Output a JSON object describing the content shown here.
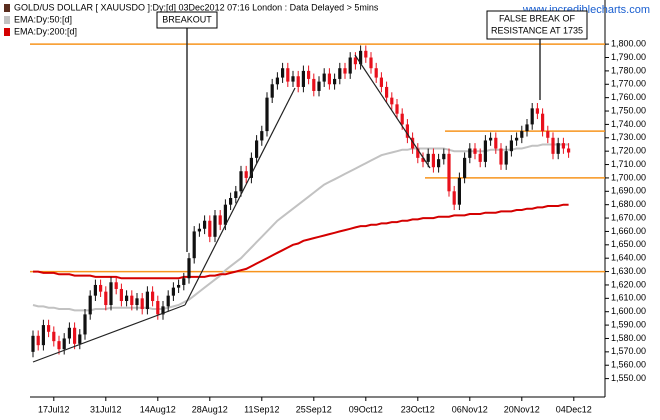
{
  "chart_data": {
    "type": "candlestick",
    "name": "GOLD/US DOLLAR [ XAUUSDO ]:Dy:[d]  03Dec2012 07:16 London : Data Delayed > 5mins",
    "watermark": "www.incrediblecharts.com",
    "up_color": "#111111",
    "down_color": "#e8101c",
    "legend_color": "#5a2d1e",
    "categories": [
      null,
      null,
      null,
      null,
      "17Jul12",
      null,
      null,
      null,
      null,
      null,
      null,
      null,
      null,
      null,
      "31Jul12",
      null,
      null,
      null,
      null,
      null,
      null,
      null,
      null,
      null,
      "14Aug12",
      null,
      null,
      null,
      null,
      null,
      null,
      null,
      null,
      null,
      "28Aug12",
      null,
      null,
      null,
      null,
      null,
      null,
      null,
      null,
      null,
      "11Sep12",
      null,
      null,
      null,
      null,
      null,
      null,
      null,
      null,
      null,
      "25Sep12",
      null,
      null,
      null,
      null,
      null,
      null,
      null,
      null,
      null,
      "09Oct12",
      null,
      null,
      null,
      null,
      null,
      null,
      null,
      null,
      null,
      "23Oct12",
      null,
      null,
      null,
      null,
      null,
      null,
      null,
      null,
      null,
      "06Nov12",
      null,
      null,
      null,
      null,
      null,
      null,
      null,
      null,
      null,
      "20Nov12",
      null,
      null,
      null,
      null,
      null,
      null,
      null,
      null,
      null,
      "04Dec12"
    ],
    "open": [
      1570,
      1582,
      1575,
      1590,
      1585,
      1578,
      1572,
      1580,
      1588,
      1576,
      1583,
      1598,
      1612,
      1620,
      1615,
      1605,
      1622,
      1617,
      1608,
      1612,
      1605,
      1610,
      1602,
      1615,
      1608,
      1598,
      1604,
      1612,
      1618,
      1620,
      1625,
      1640,
      1660,
      1662,
      1668,
      1656,
      1672,
      1665,
      1680,
      1685,
      1690,
      1705,
      1700,
      1715,
      1728,
      1735,
      1760,
      1770,
      1775,
      1782,
      1772,
      1776,
      1768,
      1780,
      1774,
      1765,
      1772,
      1778,
      1770,
      1774,
      1782,
      1778,
      1790,
      1785,
      1795,
      1790,
      1782,
      1775,
      1768,
      1760,
      1755,
      1748,
      1740,
      1730,
      1722,
      1715,
      1712,
      1718,
      1708,
      1714,
      1718,
      1690,
      1680,
      1700,
      1715,
      1722,
      1718,
      1712,
      1728,
      1730,
      1722,
      1710,
      1720,
      1728,
      1730,
      1735,
      1740,
      1752,
      1748,
      1735,
      1730,
      1718,
      1726,
      1722,
      null
    ],
    "high": [
      1586,
      1586,
      1594,
      1594,
      1589,
      1582,
      1584,
      1592,
      1592,
      1587,
      1602,
      1616,
      1624,
      1624,
      1619,
      1626,
      1626,
      1621,
      1616,
      1616,
      1614,
      1614,
      1619,
      1619,
      1612,
      1608,
      1616,
      1622,
      1624,
      1629,
      1644,
      1664,
      1666,
      1672,
      1672,
      1676,
      1676,
      1684,
      1689,
      1694,
      1709,
      1709,
      1719,
      1732,
      1739,
      1764,
      1774,
      1779,
      1786,
      1786,
      1780,
      1780,
      1784,
      1784,
      1778,
      1776,
      1782,
      1782,
      1778,
      1786,
      1786,
      1794,
      1794,
      1799,
      1799,
      1794,
      1786,
      1779,
      1772,
      1764,
      1759,
      1752,
      1744,
      1734,
      1726,
      1719,
      1722,
      1722,
      1718,
      1722,
      1722,
      1694,
      1704,
      1719,
      1726,
      1726,
      1722,
      1732,
      1734,
      1734,
      1726,
      1724,
      1732,
      1734,
      1739,
      1744,
      1756,
      1756,
      1752,
      1739,
      1734,
      1730,
      1730,
      1726,
      null
    ],
    "low": [
      1566,
      1571,
      1571,
      1581,
      1574,
      1568,
      1568,
      1576,
      1572,
      1572,
      1579,
      1594,
      1608,
      1611,
      1601,
      1601,
      1613,
      1604,
      1604,
      1601,
      1601,
      1598,
      1598,
      1604,
      1594,
      1594,
      1600,
      1608,
      1614,
      1616,
      1621,
      1636,
      1656,
      1658,
      1652,
      1652,
      1661,
      1661,
      1676,
      1681,
      1686,
      1696,
      1696,
      1711,
      1724,
      1731,
      1756,
      1766,
      1771,
      1768,
      1768,
      1764,
      1764,
      1770,
      1761,
      1761,
      1768,
      1766,
      1766,
      1770,
      1774,
      1774,
      1781,
      1781,
      1786,
      1778,
      1771,
      1764,
      1756,
      1751,
      1744,
      1736,
      1726,
      1718,
      1711,
      1708,
      1708,
      1704,
      1704,
      1710,
      1686,
      1676,
      1676,
      1696,
      1711,
      1714,
      1708,
      1708,
      1724,
      1718,
      1706,
      1706,
      1716,
      1724,
      1726,
      1731,
      1736,
      1744,
      1731,
      1726,
      1714,
      1714,
      1718,
      1715,
      null
    ],
    "close": [
      1582,
      1575,
      1590,
      1585,
      1578,
      1572,
      1580,
      1588,
      1576,
      1583,
      1598,
      1612,
      1620,
      1615,
      1605,
      1622,
      1617,
      1608,
      1612,
      1605,
      1610,
      1602,
      1615,
      1608,
      1598,
      1604,
      1612,
      1618,
      1620,
      1625,
      1640,
      1660,
      1662,
      1668,
      1656,
      1672,
      1665,
      1680,
      1685,
      1690,
      1705,
      1700,
      1715,
      1728,
      1735,
      1760,
      1770,
      1775,
      1782,
      1772,
      1776,
      1768,
      1780,
      1774,
      1765,
      1772,
      1778,
      1770,
      1774,
      1782,
      1778,
      1790,
      1785,
      1795,
      1790,
      1782,
      1775,
      1768,
      1760,
      1755,
      1748,
      1740,
      1730,
      1722,
      1715,
      1712,
      1718,
      1708,
      1714,
      1718,
      1690,
      1680,
      1700,
      1715,
      1722,
      1718,
      1712,
      1728,
      1730,
      1722,
      1710,
      1720,
      1728,
      1730,
      1735,
      1740,
      1752,
      1748,
      1735,
      1730,
      1718,
      1726,
      1722,
      1719,
      null
    ],
    "lines": [
      {
        "name": "EMA:Dy:50:[d]",
        "color": "#c2c2c2",
        "values": [
          1605,
          1604,
          1604,
          1603,
          1603,
          1602,
          1602,
          1602,
          1601,
          1601,
          1601,
          1601,
          1602,
          1602,
          1602,
          1603,
          1603,
          1603,
          1603,
          1603,
          1603,
          1603,
          1603,
          1602,
          1602,
          1602,
          1603,
          1604,
          1605,
          1607,
          1609,
          1612,
          1615,
          1618,
          1621,
          1624,
          1627,
          1631,
          1634,
          1637,
          1640,
          1644,
          1648,
          1652,
          1656,
          1660,
          1664,
          1668,
          1671,
          1674,
          1677,
          1680,
          1683,
          1686,
          1689,
          1692,
          1695,
          1697,
          1699,
          1701,
          1703,
          1705,
          1707,
          1709,
          1711,
          1713,
          1715,
          1717,
          1718,
          1719,
          1720,
          1721,
          1721,
          1722,
          1722,
          1722,
          1722,
          1722,
          1722,
          1722,
          1721,
          1720,
          1720,
          1720,
          1720,
          1720,
          1720,
          1720,
          1721,
          1721,
          1721,
          1721,
          1721,
          1722,
          1722,
          1723,
          1724,
          1724,
          1725,
          1725,
          1725,
          1725,
          1725,
          1725,
          null
        ]
      },
      {
        "name": "EMA:Dy:200:[d]",
        "color": "#d40000",
        "values": [
          1630,
          1630,
          1629,
          1629,
          1629,
          1628,
          1628,
          1628,
          1627,
          1627,
          1627,
          1627,
          1626,
          1626,
          1626,
          1626,
          1626,
          1625,
          1625,
          1625,
          1625,
          1625,
          1625,
          1625,
          1625,
          1625,
          1625,
          1625,
          1625,
          1626,
          1626,
          1626,
          1626,
          1626,
          1627,
          1627,
          1628,
          1628,
          1629,
          1630,
          1631,
          1632,
          1634,
          1636,
          1638,
          1640,
          1642,
          1644,
          1646,
          1648,
          1650,
          1651,
          1653,
          1654,
          1655,
          1656,
          1657,
          1658,
          1659,
          1660,
          1661,
          1662,
          1663,
          1664,
          1664,
          1665,
          1665,
          1666,
          1666,
          1667,
          1667,
          1668,
          1668,
          1669,
          1669,
          1670,
          1670,
          1670,
          1671,
          1671,
          1671,
          1672,
          1672,
          1672,
          1673,
          1673,
          1673,
          1674,
          1674,
          1674,
          1675,
          1675,
          1675,
          1676,
          1676,
          1677,
          1677,
          1678,
          1678,
          1679,
          1679,
          1679,
          1680,
          1680,
          null
        ]
      }
    ],
    "levels": {
      "color": "#f7941d",
      "values": [
        1800,
        1630,
        1735,
        1700
      ]
    },
    "annotations": [
      [
        "BREAKOUT"
      ],
      [
        "FALSE BREAK OF",
        "RESISTANCE AT 1735"
      ]
    ],
    "ylim": [
      1537,
      1830
    ],
    "yticks": [
      {
        "value": 1550,
        "label": "1,550.00"
      },
      {
        "value": 1560,
        "label": "1,560.00"
      },
      {
        "value": 1570,
        "label": "1,570.00"
      },
      {
        "value": 1580,
        "label": "1,580.00"
      },
      {
        "value": 1590,
        "label": "1,590.00"
      },
      {
        "value": 1600,
        "label": "1,600.00"
      },
      {
        "value": 1610,
        "label": "1,610.00"
      },
      {
        "value": 1620,
        "label": "1,620.00"
      },
      {
        "value": 1630,
        "label": "1,630.00"
      },
      {
        "value": 1640,
        "label": "1,640.00"
      },
      {
        "value": 1650,
        "label": "1,650.00"
      },
      {
        "value": 1660,
        "label": "1,660.00"
      },
      {
        "value": 1670,
        "label": "1,670.00"
      },
      {
        "value": 1680,
        "label": "1,680.00"
      },
      {
        "value": 1690,
        "label": "1,690.00"
      },
      {
        "value": 1700,
        "label": "1,700.00"
      },
      {
        "value": 1710,
        "label": "1,710.00"
      },
      {
        "value": 1720,
        "label": "1,720.00"
      },
      {
        "value": 1730,
        "label": "1,730.00"
      },
      {
        "value": 1740,
        "label": "1,740.00"
      },
      {
        "value": 1750,
        "label": "1,750.00"
      },
      {
        "value": 1760,
        "label": "1,760.00"
      },
      {
        "value": 1770,
        "label": "1,770.00"
      },
      {
        "value": 1780,
        "label": "1,780.00"
      },
      {
        "value": 1790,
        "label": "1,790.00"
      },
      {
        "value": 1800,
        "label": "1,800.00"
      }
    ]
  }
}
